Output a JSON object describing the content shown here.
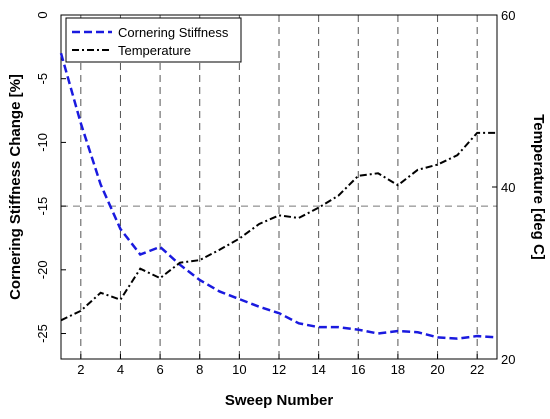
{
  "chart_data": {
    "type": "line",
    "xlabel": "Sweep Number",
    "ylabel_left": "Cornering Stiffness Change [%]",
    "ylabel_right": "Temperature [deg C]",
    "xlim": [
      1,
      23
    ],
    "ylim_left": [
      -27,
      0
    ],
    "ylim_right": [
      20,
      60
    ],
    "x_ticks": [
      2,
      4,
      6,
      8,
      10,
      12,
      14,
      16,
      18,
      20,
      22
    ],
    "y_ticks_left": [
      0,
      -5,
      -10,
      -15,
      -20,
      -25
    ],
    "y_ticks_right": [
      20,
      40,
      60
    ],
    "grid": true,
    "legend_position": "top-left",
    "series": [
      {
        "name": "Cornering Stiffness",
        "axis": "left",
        "color": "#1a1adf",
        "dash": "dashed",
        "x": [
          1,
          2,
          3,
          4,
          5,
          6,
          7,
          8,
          9,
          10,
          11,
          12,
          13,
          14,
          15,
          16,
          17,
          18,
          19,
          20,
          21,
          22,
          23
        ],
        "values": [
          -3.0,
          -8.5,
          -13.3,
          -16.8,
          -18.8,
          -18.2,
          -19.6,
          -20.8,
          -21.7,
          -22.3,
          -22.9,
          -23.4,
          -24.2,
          -24.5,
          -24.5,
          -24.7,
          -25.0,
          -24.8,
          -24.9,
          -25.3,
          -25.4,
          -25.2,
          -25.3
        ]
      },
      {
        "name": "Temperature",
        "axis": "right",
        "color": "#000000",
        "dash": "dashdot",
        "x": [
          1,
          2,
          3,
          4,
          5,
          6,
          7,
          8,
          9,
          10,
          11,
          12,
          13,
          14,
          15,
          16,
          17,
          18,
          19,
          20,
          21,
          22,
          23
        ],
        "values": [
          24.5,
          25.6,
          27.7,
          26.9,
          30.5,
          29.4,
          31.2,
          31.5,
          32.7,
          34.0,
          35.7,
          36.7,
          36.4,
          37.6,
          39.0,
          41.3,
          41.6,
          40.2,
          42.0,
          42.6,
          43.7,
          46.3,
          46.3
        ]
      }
    ]
  }
}
